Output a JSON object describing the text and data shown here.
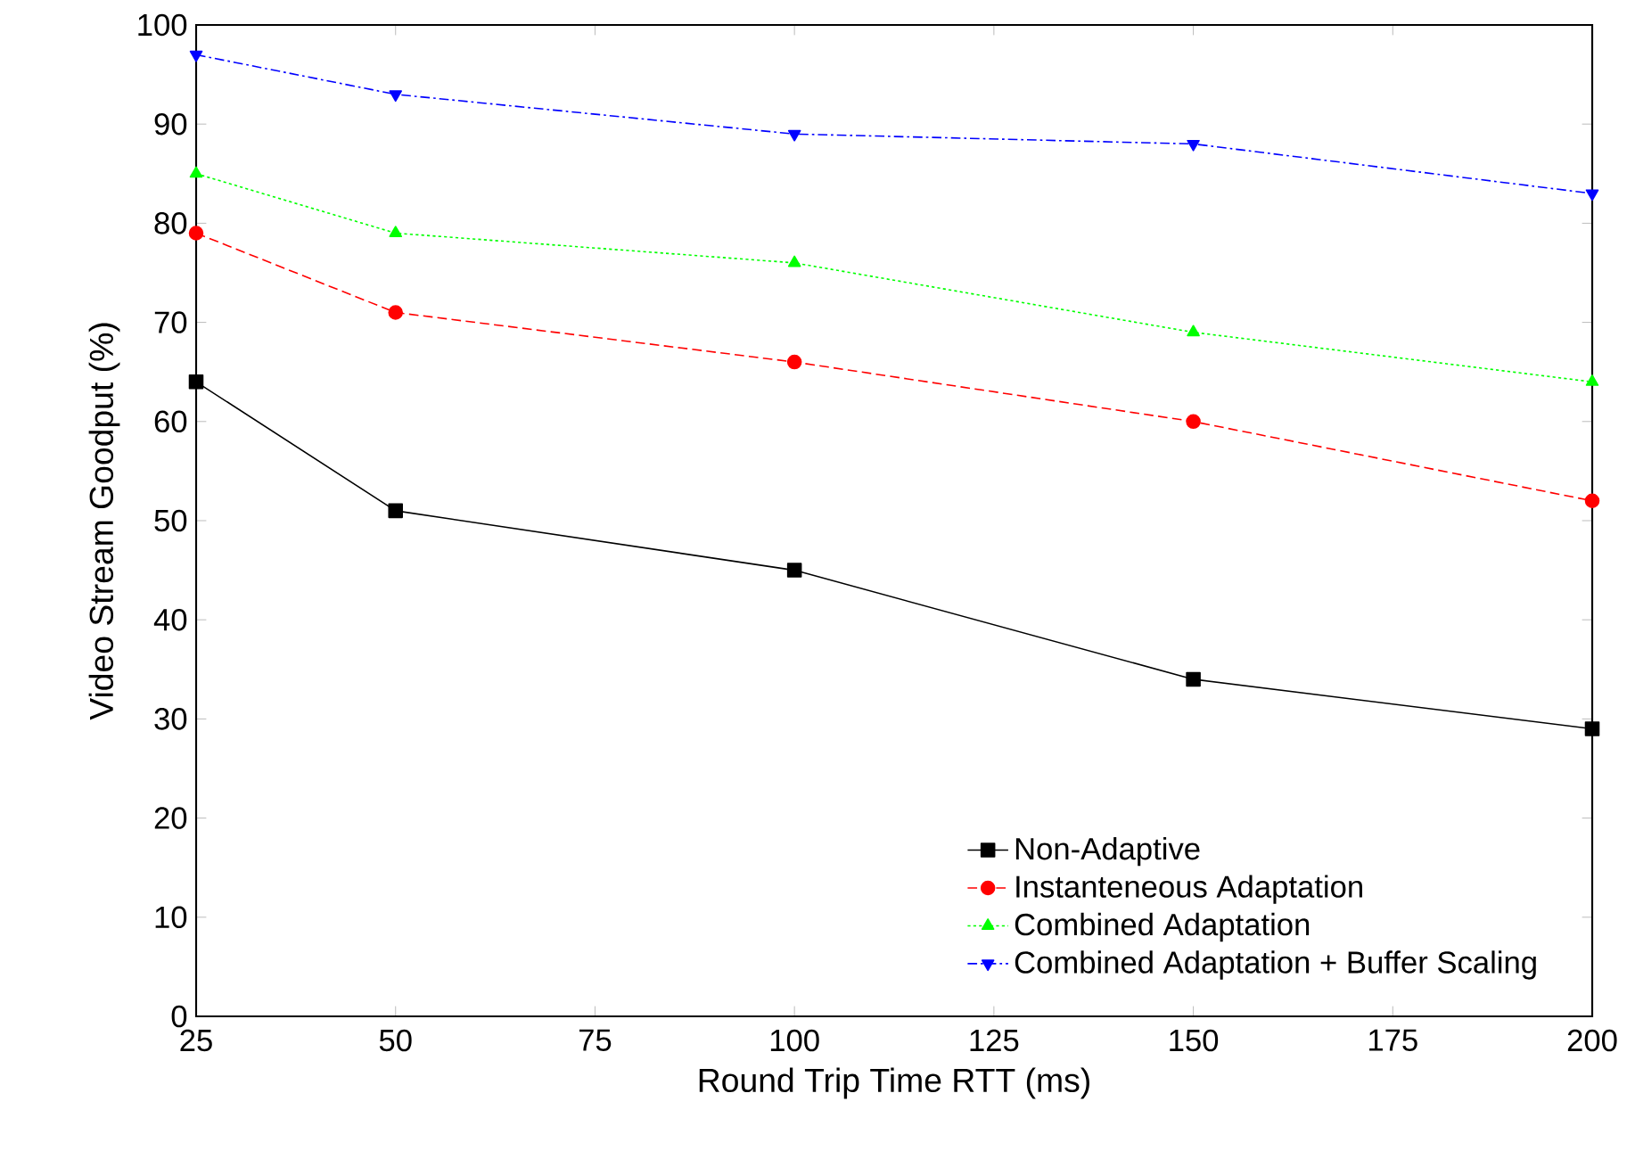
{
  "chart_data": {
    "type": "line",
    "xlabel": "Round Trip Time RTT (ms)",
    "ylabel": "Video Stream Goodput (%)",
    "x": [
      25,
      50,
      100,
      150,
      200
    ],
    "series": [
      {
        "name": "Non-Adaptive",
        "color": "#000000",
        "values": [
          64,
          51,
          45,
          34,
          29
        ],
        "marker": "square",
        "line_style": "solid"
      },
      {
        "name": "Instanteneous Adaptation",
        "color": "#ff0000",
        "values": [
          79,
          71,
          66,
          60,
          52
        ],
        "marker": "circle",
        "line_style": "dashed"
      },
      {
        "name": "Combined Adaptation",
        "color": "#00ff00",
        "values": [
          85,
          79,
          76,
          69,
          64
        ],
        "marker": "triangle",
        "line_style": "dotted"
      },
      {
        "name": "Combined Adaptation + Buffer Scaling",
        "color": "#0000ff",
        "values": [
          97,
          93,
          89,
          88,
          83
        ],
        "marker": "triangle-down",
        "line_style": "dashdotted"
      }
    ],
    "xlim": [
      25,
      200
    ],
    "xticks": [
      25,
      50,
      75,
      100,
      125,
      150,
      175,
      200
    ],
    "ylim": [
      0,
      100
    ],
    "yticks": [
      0,
      10,
      20,
      30,
      40,
      50,
      60,
      70,
      80,
      90,
      100
    ],
    "grid": false,
    "legend": "bottom right"
  }
}
